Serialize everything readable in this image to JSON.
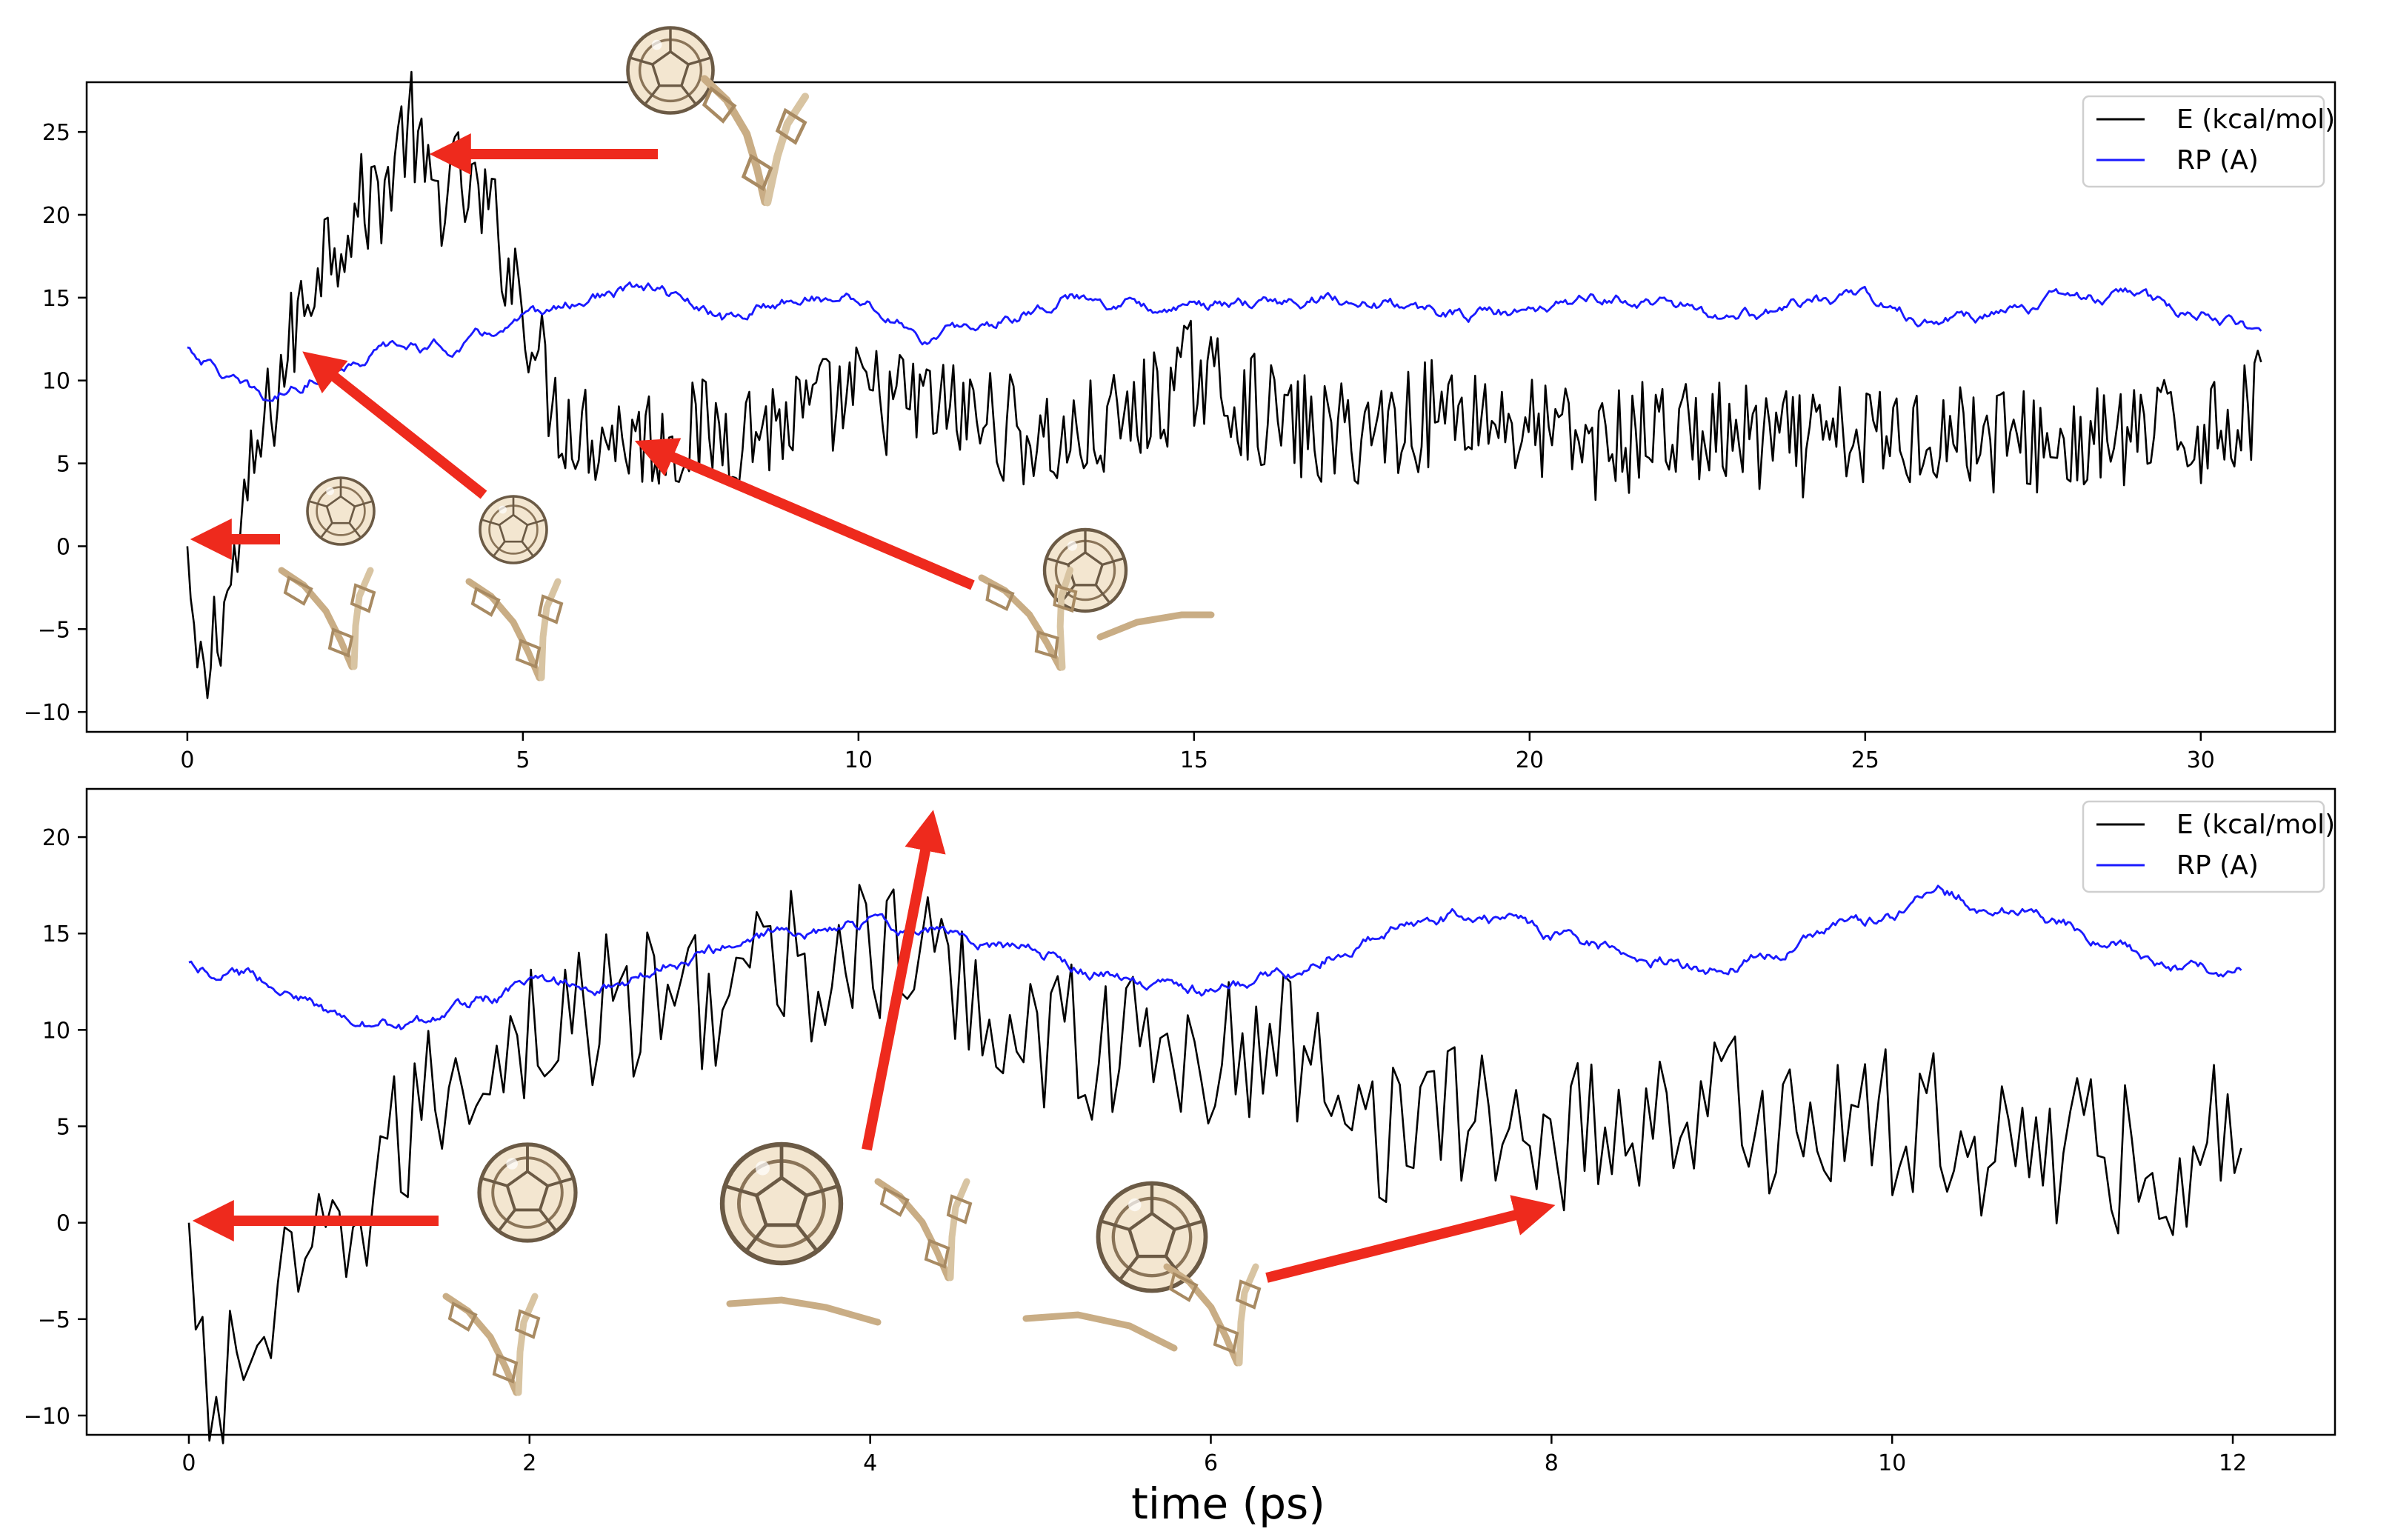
{
  "chart_data": [
    {
      "type": "line",
      "panel": "top",
      "title": "",
      "xlabel": "",
      "ylabel": "",
      "xlim": [
        -1.5,
        32.0
      ],
      "ylim": [
        -11.2,
        28.0
      ],
      "xticks": [
        0,
        5,
        10,
        15,
        20,
        25,
        30
      ],
      "yticks": [
        -10,
        -5,
        0,
        5,
        10,
        15,
        20,
        25
      ],
      "legend": {
        "placement": "top-right",
        "entries": [
          "E (kcal/mol)",
          "RP (A)"
        ]
      },
      "series": [
        {
          "name": "E (kcal/mol)",
          "color": "#000000",
          "description": "noisy energy trace",
          "anchors": [
            [
              0,
              0
            ],
            [
              0.1,
              -8
            ],
            [
              0.2,
              -7
            ],
            [
              0.25,
              -9.5
            ],
            [
              0.4,
              -5
            ],
            [
              0.6,
              -3
            ],
            [
              0.8,
              0.5
            ],
            [
              1.0,
              5
            ],
            [
              1.3,
              9
            ],
            [
              1.6,
              13
            ],
            [
              2.0,
              18
            ],
            [
              2.5,
              20
            ],
            [
              3.0,
              22
            ],
            [
              3.3,
              26
            ],
            [
              3.6,
              21
            ],
            [
              4.0,
              22
            ],
            [
              4.5,
              20
            ],
            [
              5.0,
              15
            ],
            [
              5.2,
              12
            ],
            [
              5.5,
              8
            ],
            [
              6,
              7
            ],
            [
              7,
              6.5
            ],
            [
              8,
              7
            ],
            [
              9,
              7.5
            ],
            [
              10,
              9
            ],
            [
              11,
              8.5
            ],
            [
              12,
              7.5
            ],
            [
              13,
              6
            ],
            [
              14,
              7.5
            ],
            [
              15,
              10.5
            ],
            [
              16,
              8
            ],
            [
              17,
              6.5
            ],
            [
              18,
              7.5
            ],
            [
              19,
              8.5
            ],
            [
              20,
              7
            ],
            [
              21,
              6
            ],
            [
              22,
              7
            ],
            [
              23,
              6.5
            ],
            [
              24,
              6
            ],
            [
              25,
              6.5
            ],
            [
              26,
              7
            ],
            [
              27,
              6.5
            ],
            [
              28,
              6
            ],
            [
              29,
              6.5
            ],
            [
              30,
              7
            ],
            [
              30.9,
              8.5
            ]
          ],
          "noise": 3.4
        },
        {
          "name": "RP (A)",
          "color": "#1a1aff",
          "description": "smooth distance trace",
          "anchors": [
            [
              0,
              12
            ],
            [
              0.5,
              10.5
            ],
            [
              0.8,
              9.5
            ],
            [
              1.2,
              8.7
            ],
            [
              2,
              10.5
            ],
            [
              3,
              12
            ],
            [
              4,
              12
            ],
            [
              5,
              13.5
            ],
            [
              6,
              15
            ],
            [
              7,
              15.5
            ],
            [
              8,
              13.5
            ],
            [
              9,
              15
            ],
            [
              10,
              15
            ],
            [
              11,
              12.5
            ],
            [
              12,
              13.5
            ],
            [
              13,
              15
            ],
            [
              14,
              14.8
            ],
            [
              15,
              14.5
            ],
            [
              16,
              14.5
            ],
            [
              17,
              15
            ],
            [
              18,
              14.5
            ],
            [
              19,
              14
            ],
            [
              20,
              14
            ],
            [
              21,
              15
            ],
            [
              22,
              14.8
            ],
            [
              23,
              13.5
            ],
            [
              24,
              14.5
            ],
            [
              25,
              15
            ],
            [
              26,
              13.5
            ],
            [
              27,
              14
            ],
            [
              28,
              15
            ],
            [
              29,
              15
            ],
            [
              30,
              14
            ],
            [
              30.9,
              13
            ]
          ],
          "noise": 0.25
        }
      ]
    },
    {
      "type": "line",
      "panel": "bottom",
      "title": "",
      "xlabel": "time (ps)",
      "ylabel": "",
      "xlim": [
        -0.6,
        12.6
      ],
      "ylim": [
        -11,
        22.5
      ],
      "xticks": [
        0,
        2,
        4,
        6,
        8,
        10,
        12
      ],
      "yticks": [
        -10,
        -5,
        0,
        5,
        10,
        15,
        20
      ],
      "legend": {
        "placement": "top-right",
        "entries": [
          "E (kcal/mol)",
          "RP (A)"
        ]
      },
      "series": [
        {
          "name": "E (kcal/mol)",
          "color": "#000000",
          "description": "noisy energy trace",
          "anchors": [
            [
              0,
              0
            ],
            [
              0.05,
              -8.5
            ],
            [
              0.15,
              -9.5
            ],
            [
              0.3,
              -7
            ],
            [
              0.5,
              -5
            ],
            [
              0.7,
              -3
            ],
            [
              0.9,
              -1
            ],
            [
              1.1,
              2
            ],
            [
              1.3,
              5
            ],
            [
              1.6,
              8
            ],
            [
              2.0,
              10
            ],
            [
              2.5,
              11
            ],
            [
              3.0,
              12
            ],
            [
              3.5,
              13
            ],
            [
              4.0,
              14
            ],
            [
              4.4,
              13
            ],
            [
              4.7,
              11
            ],
            [
              5.0,
              10
            ],
            [
              5.5,
              9
            ],
            [
              6.0,
              8.5
            ],
            [
              6.5,
              9
            ],
            [
              6.8,
              8
            ],
            [
              7.0,
              5
            ],
            [
              7.5,
              5.5
            ],
            [
              8.0,
              4.5
            ],
            [
              8.5,
              5.5
            ],
            [
              9.0,
              6
            ],
            [
              9.5,
              5
            ],
            [
              10,
              5
            ],
            [
              10.5,
              4.5
            ],
            [
              11,
              4
            ],
            [
              11.5,
              3
            ],
            [
              12.05,
              5
            ]
          ],
          "noise": 4.2
        },
        {
          "name": "RP (A)",
          "color": "#1a1aff",
          "description": "smooth distance trace",
          "anchors": [
            [
              0,
              13.5
            ],
            [
              0.5,
              12.5
            ],
            [
              0.9,
              10.5
            ],
            [
              1.3,
              10
            ],
            [
              1.7,
              11.5
            ],
            [
              2.0,
              12.3
            ],
            [
              2.5,
              12.5
            ],
            [
              3.0,
              14
            ],
            [
              3.5,
              15
            ],
            [
              4.0,
              15.5
            ],
            [
              4.5,
              15
            ],
            [
              5.0,
              14
            ],
            [
              5.5,
              12.5
            ],
            [
              6.0,
              12
            ],
            [
              6.5,
              13
            ],
            [
              7.0,
              15
            ],
            [
              7.5,
              16
            ],
            [
              8.0,
              15
            ],
            [
              8.5,
              13.8
            ],
            [
              9.0,
              13
            ],
            [
              9.5,
              14.5
            ],
            [
              10.0,
              16
            ],
            [
              10.3,
              17
            ],
            [
              10.8,
              16
            ],
            [
              11.3,
              14.5
            ],
            [
              11.7,
              13
            ],
            [
              12.05,
              13
            ]
          ],
          "noise": 0.22
        }
      ]
    }
  ]
}
